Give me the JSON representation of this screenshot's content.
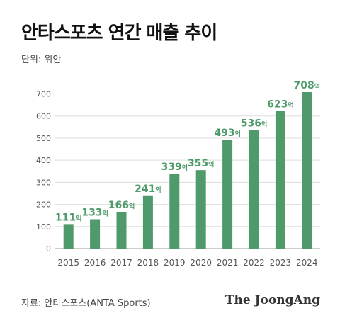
{
  "header": {
    "title": "안타스포츠 연간 매출 추이",
    "unit_label": "단위: 위안"
  },
  "footer": {
    "source": "자료: 안타스포츠(ANTA Sports)",
    "brand": "The JoongAng"
  },
  "colors": {
    "bar": "#4e9a6a",
    "value_label": "#4e9a6a",
    "axis_text": "#555555",
    "grid": "#dddddd"
  },
  "chart_data": {
    "type": "bar",
    "categories": [
      "2015",
      "2016",
      "2017",
      "2018",
      "2019",
      "2020",
      "2021",
      "2022",
      "2023",
      "2024"
    ],
    "values": [
      111,
      133,
      166,
      241,
      339,
      355,
      493,
      536,
      623,
      708
    ],
    "value_suffix": "억",
    "yticks": [
      0,
      100,
      200,
      300,
      400,
      500,
      600,
      700
    ],
    "ylim": [
      0,
      740
    ],
    "grid": true
  }
}
